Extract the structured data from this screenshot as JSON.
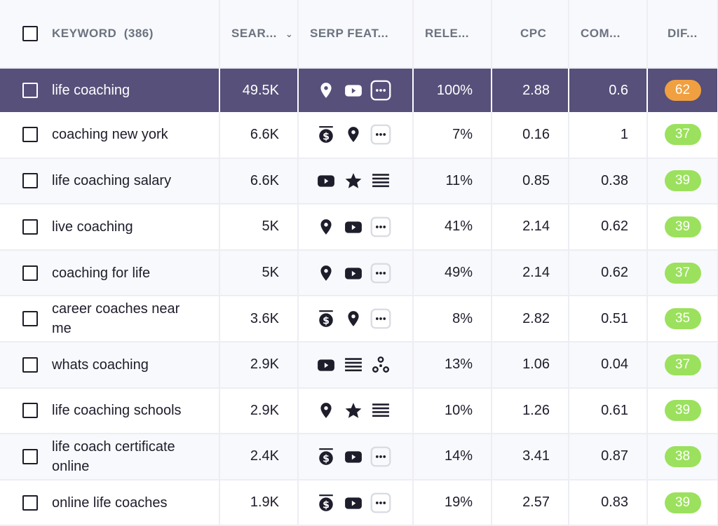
{
  "header": {
    "keyword": "KEYWORD",
    "count": "(386)",
    "search": "SEAR...",
    "serp": "SERP FEAT...",
    "relevance": "RELE...",
    "cpc": "CPC",
    "competition": "COM...",
    "difficulty": "DIF..."
  },
  "colors": {
    "highlight": "#56507a",
    "easy": "#9be15d",
    "medium": "#f0a040"
  },
  "rows": [
    {
      "keyword": "life coaching",
      "volume": "49.5K",
      "serp": [
        "location-pin-icon",
        "youtube-icon",
        "more-icon"
      ],
      "relevance": "100%",
      "cpc": "2.88",
      "com": "0.6",
      "diff": "62",
      "level": "medium",
      "highlighted": true
    },
    {
      "keyword": "coaching new york",
      "volume": "6.6K",
      "serp": [
        "ads-top-icon",
        "location-pin-icon",
        "more-icon"
      ],
      "relevance": "7%",
      "cpc": "0.16",
      "com": "1",
      "diff": "37",
      "level": "easy"
    },
    {
      "keyword": "life coaching salary",
      "volume": "6.6K",
      "serp": [
        "youtube-icon",
        "star-icon",
        "list-icon"
      ],
      "relevance": "11%",
      "cpc": "0.85",
      "com": "0.38",
      "diff": "39",
      "level": "easy"
    },
    {
      "keyword": "live coaching",
      "volume": "5K",
      "serp": [
        "location-pin-icon",
        "youtube-icon",
        "more-icon"
      ],
      "relevance": "41%",
      "cpc": "2.14",
      "com": "0.62",
      "diff": "39",
      "level": "easy"
    },
    {
      "keyword": "coaching for life",
      "volume": "5K",
      "serp": [
        "location-pin-icon",
        "youtube-icon",
        "more-icon"
      ],
      "relevance": "49%",
      "cpc": "2.14",
      "com": "0.62",
      "diff": "37",
      "level": "easy"
    },
    {
      "keyword": "career coaches near me",
      "volume": "3.6K",
      "serp": [
        "ads-top-icon",
        "location-pin-icon",
        "more-icon"
      ],
      "relevance": "8%",
      "cpc": "2.82",
      "com": "0.51",
      "diff": "35",
      "level": "easy"
    },
    {
      "keyword": "whats coaching",
      "volume": "2.9K",
      "serp": [
        "youtube-icon",
        "list-icon",
        "knowledge-graph-icon"
      ],
      "relevance": "13%",
      "cpc": "1.06",
      "com": "0.04",
      "diff": "37",
      "level": "easy"
    },
    {
      "keyword": "life coaching schools",
      "volume": "2.9K",
      "serp": [
        "location-pin-icon",
        "star-icon",
        "list-icon"
      ],
      "relevance": "10%",
      "cpc": "1.26",
      "com": "0.61",
      "diff": "39",
      "level": "easy"
    },
    {
      "keyword": "life coach certificate online",
      "volume": "2.4K",
      "serp": [
        "ads-top-icon",
        "youtube-icon",
        "more-icon"
      ],
      "relevance": "14%",
      "cpc": "3.41",
      "com": "0.87",
      "diff": "38",
      "level": "easy"
    },
    {
      "keyword": "online life coaches",
      "volume": "1.9K",
      "serp": [
        "ads-top-icon",
        "youtube-icon",
        "more-icon"
      ],
      "relevance": "19%",
      "cpc": "2.57",
      "com": "0.83",
      "diff": "39",
      "level": "easy"
    }
  ]
}
